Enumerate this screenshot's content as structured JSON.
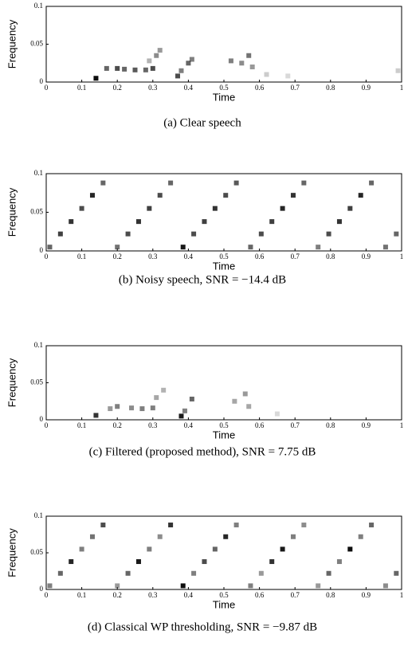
{
  "chart_data": [
    {
      "type": "heatmap",
      "caption": "(a) Clear speech",
      "xlabel": "Time",
      "ylabel": "Frequency",
      "xlim": [
        0,
        1
      ],
      "ylim": [
        0,
        0.1
      ],
      "xticks": [
        0,
        0.1,
        0.2,
        0.3,
        0.4,
        0.5,
        0.6,
        0.7,
        0.8,
        0.9,
        1
      ],
      "yticks": [
        0,
        0.05,
        0.1
      ],
      "x": [
        0.14,
        0.17,
        0.2,
        0.22,
        0.25,
        0.28,
        0.3,
        0.31,
        0.32,
        0.29,
        0.37,
        0.38,
        0.4,
        0.41,
        0.52,
        0.55,
        0.57,
        0.58,
        0.62,
        0.68,
        0.99
      ],
      "y": [
        0.005,
        0.018,
        0.018,
        0.017,
        0.016,
        0.016,
        0.018,
        0.035,
        0.042,
        0.028,
        0.008,
        0.015,
        0.025,
        0.03,
        0.028,
        0.025,
        0.035,
        0.02,
        0.01,
        0.008,
        0.015
      ],
      "values": [
        0.95,
        0.6,
        0.7,
        0.6,
        0.65,
        0.6,
        0.7,
        0.45,
        0.4,
        0.3,
        0.7,
        0.5,
        0.6,
        0.5,
        0.5,
        0.45,
        0.55,
        0.4,
        0.2,
        0.15,
        0.2
      ]
    },
    {
      "type": "heatmap",
      "caption": "(b) Noisy speech, SNR = −14.4 dB",
      "xlabel": "Time",
      "ylabel": "Frequency",
      "xlim": [
        0,
        1
      ],
      "ylim": [
        0,
        0.1
      ],
      "xticks": [
        0,
        0.1,
        0.2,
        0.3,
        0.4,
        0.5,
        0.6,
        0.7,
        0.8,
        0.9,
        1
      ],
      "yticks": [
        0,
        0.05,
        0.1
      ],
      "x": [
        0.01,
        0.04,
        0.07,
        0.1,
        0.13,
        0.16,
        0.2,
        0.23,
        0.26,
        0.29,
        0.32,
        0.35,
        0.385,
        0.415,
        0.445,
        0.475,
        0.505,
        0.535,
        0.575,
        0.605,
        0.635,
        0.665,
        0.695,
        0.725,
        0.765,
        0.795,
        0.825,
        0.855,
        0.885,
        0.915,
        0.955,
        0.985
      ],
      "y": [
        0.005,
        0.022,
        0.038,
        0.055,
        0.072,
        0.088,
        0.005,
        0.022,
        0.038,
        0.055,
        0.072,
        0.088,
        0.005,
        0.022,
        0.038,
        0.055,
        0.072,
        0.088,
        0.005,
        0.022,
        0.038,
        0.055,
        0.072,
        0.088,
        0.005,
        0.022,
        0.038,
        0.055,
        0.072,
        0.088,
        0.005,
        0.022
      ],
      "values": [
        0.6,
        0.75,
        0.8,
        0.7,
        0.85,
        0.6,
        0.55,
        0.7,
        0.8,
        0.75,
        0.7,
        0.6,
        0.9,
        0.7,
        0.75,
        0.8,
        0.7,
        0.65,
        0.6,
        0.7,
        0.75,
        0.85,
        0.8,
        0.6,
        0.5,
        0.7,
        0.8,
        0.75,
        0.85,
        0.6,
        0.55,
        0.6
      ]
    },
    {
      "type": "heatmap",
      "caption": "(c) Filtered (proposed method), SNR = 7.75 dB",
      "xlabel": "Time",
      "ylabel": "Frequency",
      "xlim": [
        0,
        1
      ],
      "ylim": [
        0,
        0.1
      ],
      "xticks": [
        0,
        0.1,
        0.2,
        0.3,
        0.4,
        0.5,
        0.6,
        0.7,
        0.8,
        0.9,
        1
      ],
      "yticks": [
        0,
        0.05,
        0.1
      ],
      "x": [
        0.14,
        0.18,
        0.2,
        0.24,
        0.27,
        0.3,
        0.31,
        0.33,
        0.38,
        0.39,
        0.41,
        0.53,
        0.56,
        0.57,
        0.65
      ],
      "y": [
        0.006,
        0.015,
        0.018,
        0.016,
        0.015,
        0.016,
        0.03,
        0.04,
        0.005,
        0.012,
        0.028,
        0.025,
        0.035,
        0.018,
        0.008
      ],
      "values": [
        0.8,
        0.4,
        0.5,
        0.45,
        0.5,
        0.5,
        0.35,
        0.3,
        0.9,
        0.5,
        0.6,
        0.35,
        0.4,
        0.35,
        0.15
      ]
    },
    {
      "type": "heatmap",
      "caption": "(d) Classical WP thresholding, SNR = −9.87 dB",
      "xlabel": "Time",
      "ylabel": "Frequency",
      "xlim": [
        0,
        1
      ],
      "ylim": [
        0,
        0.1
      ],
      "xticks": [
        0,
        0.1,
        0.2,
        0.3,
        0.4,
        0.5,
        0.6,
        0.7,
        0.8,
        0.9,
        1
      ],
      "yticks": [
        0,
        0.05,
        0.1
      ],
      "x": [
        0.01,
        0.04,
        0.07,
        0.1,
        0.13,
        0.16,
        0.2,
        0.23,
        0.26,
        0.29,
        0.32,
        0.35,
        0.385,
        0.415,
        0.445,
        0.475,
        0.505,
        0.535,
        0.575,
        0.605,
        0.635,
        0.665,
        0.695,
        0.725,
        0.765,
        0.795,
        0.825,
        0.855,
        0.885,
        0.915,
        0.955,
        0.985
      ],
      "y": [
        0.005,
        0.022,
        0.038,
        0.055,
        0.072,
        0.088,
        0.005,
        0.022,
        0.038,
        0.055,
        0.072,
        0.088,
        0.005,
        0.022,
        0.038,
        0.055,
        0.072,
        0.088,
        0.005,
        0.022,
        0.038,
        0.055,
        0.072,
        0.088,
        0.005,
        0.022,
        0.038,
        0.055,
        0.072,
        0.088,
        0.005,
        0.022
      ],
      "values": [
        0.5,
        0.6,
        0.85,
        0.5,
        0.55,
        0.7,
        0.4,
        0.6,
        0.9,
        0.5,
        0.45,
        0.8,
        0.95,
        0.5,
        0.7,
        0.6,
        0.85,
        0.5,
        0.5,
        0.4,
        0.8,
        0.9,
        0.5,
        0.45,
        0.4,
        0.6,
        0.5,
        0.95,
        0.5,
        0.6,
        0.45,
        0.6
      ]
    }
  ]
}
